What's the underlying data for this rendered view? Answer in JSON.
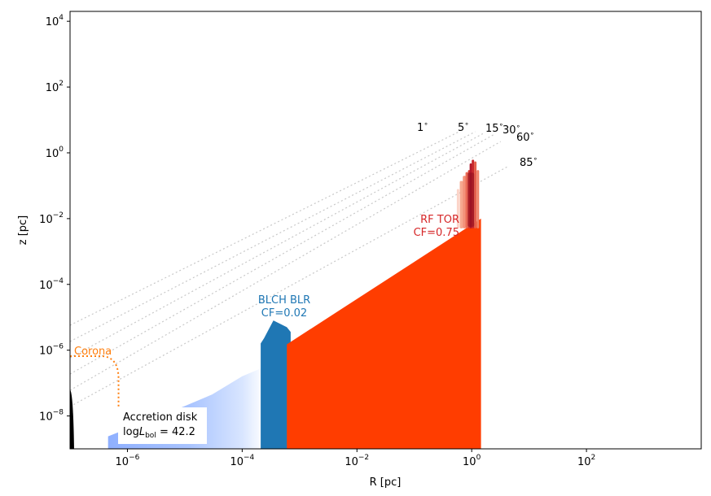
{
  "chart_data": {
    "type": "area",
    "xlabel": "R [pc]",
    "ylabel": "z [pc]",
    "xscale": "log",
    "yscale": "log",
    "xlim": [
      1e-07,
      10000
    ],
    "ylim": [
      1e-09,
      20000
    ],
    "xticks": [
      {
        "value": 1e-06,
        "base": "10",
        "exp": "−6"
      },
      {
        "value": 0.0001,
        "base": "10",
        "exp": "−4"
      },
      {
        "value": 0.01,
        "base": "10",
        "exp": "−2"
      },
      {
        "value": 1,
        "base": "10",
        "exp": "0"
      },
      {
        "value": 100,
        "base": "10",
        "exp": "2"
      }
    ],
    "yticks": [
      {
        "value": 1e-08,
        "base": "10",
        "exp": "−8"
      },
      {
        "value": 1e-06,
        "base": "10",
        "exp": "−6"
      },
      {
        "value": 0.0001,
        "base": "10",
        "exp": "−4"
      },
      {
        "value": 0.01,
        "base": "10",
        "exp": "−2"
      },
      {
        "value": 1,
        "base": "10",
        "exp": "0"
      },
      {
        "value": 100,
        "base": "10",
        "exp": "2"
      },
      {
        "value": 10000,
        "base": "10",
        "exp": "4"
      }
    ],
    "colors": {
      "torus": "#ff3d00",
      "torus_clumps": "#b2182b",
      "blr": "#1f77b4",
      "disk_blue": "#8fb4ff",
      "disk_orange": "#ff8c00",
      "corona": "#ff7f0e",
      "label_blr": "#1f77b4",
      "label_torus": "#d62728"
    },
    "components": {
      "disk": {
        "r_in": 4.6e-07,
        "r_out": 1.4
      },
      "torus": {
        "r_min": 0.0006,
        "r_max": 1.45,
        "z_top_at_max": 0.01
      },
      "blr": {
        "r_min": 0.00021,
        "r_max": 0.0007,
        "z_peak": 8e-06
      },
      "corona": {
        "height": 6.6e-07,
        "radius": 7e-07
      }
    },
    "angles": [
      {
        "label": "1",
        "deg": 1
      },
      {
        "label": "5",
        "deg": 5
      },
      {
        "label": "15",
        "deg": 15
      },
      {
        "label": "30",
        "deg": 30
      },
      {
        "label": "60",
        "deg": 60
      },
      {
        "label": "85",
        "deg": 85
      }
    ],
    "labels": {
      "corona": "Corona",
      "blr_line1": "BLCH BLR",
      "blr_line2": "CF=0.02",
      "torus_line1": "RF TOR",
      "torus_line2": "CF=0.75",
      "disk_line1": "Accretion disk",
      "disk_line2_prefix": "log",
      "disk_line2_var": "L",
      "disk_line2_sub": "bol",
      "disk_line2_value": " = 42.2"
    }
  }
}
